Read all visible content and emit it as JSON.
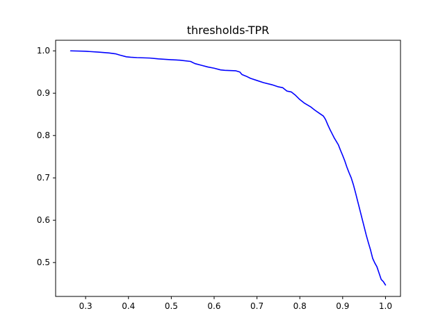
{
  "chart_data": {
    "type": "line",
    "title": "thresholds-TPR",
    "xlabel": "",
    "ylabel": "",
    "xlim": [
      0.23,
      1.035
    ],
    "ylim": [
      0.42,
      1.025
    ],
    "xticks": [
      0.3,
      0.4,
      0.5,
      0.6,
      0.7,
      0.8,
      0.9,
      1.0
    ],
    "xtick_labels": [
      "0.3",
      "0.4",
      "0.5",
      "0.6",
      "0.7",
      "0.8",
      "0.9",
      "1.0"
    ],
    "yticks": [
      0.5,
      0.6,
      0.7,
      0.8,
      0.9,
      1.0
    ],
    "ytick_labels": [
      "0.5",
      "0.6",
      "0.7",
      "0.8",
      "0.9",
      "1.0"
    ],
    "grid": false,
    "legend": "none",
    "series": [
      {
        "color": "#0000ff",
        "x": [
          0.265,
          0.3,
          0.33,
          0.355,
          0.37,
          0.38,
          0.395,
          0.405,
          0.42,
          0.45,
          0.47,
          0.5,
          0.52,
          0.545,
          0.555,
          0.57,
          0.585,
          0.6,
          0.615,
          0.625,
          0.65,
          0.66,
          0.665,
          0.675,
          0.685,
          0.7,
          0.715,
          0.735,
          0.75,
          0.76,
          0.77,
          0.78,
          0.79,
          0.8,
          0.81,
          0.825,
          0.835,
          0.845,
          0.855,
          0.86,
          0.865,
          0.87,
          0.875,
          0.88,
          0.89,
          0.895,
          0.9,
          0.905,
          0.91,
          0.915,
          0.92,
          0.925,
          0.93,
          0.935,
          0.94,
          0.945,
          0.95,
          0.955,
          0.96,
          0.965,
          0.97,
          0.975,
          0.98,
          0.985,
          0.99,
          0.995,
          1.0
        ],
        "y": [
          1.0,
          0.999,
          0.997,
          0.995,
          0.993,
          0.99,
          0.986,
          0.985,
          0.984,
          0.983,
          0.981,
          0.979,
          0.978,
          0.975,
          0.97,
          0.966,
          0.962,
          0.959,
          0.955,
          0.954,
          0.953,
          0.95,
          0.944,
          0.94,
          0.935,
          0.93,
          0.925,
          0.92,
          0.915,
          0.913,
          0.905,
          0.903,
          0.895,
          0.885,
          0.877,
          0.868,
          0.86,
          0.853,
          0.846,
          0.838,
          0.826,
          0.815,
          0.805,
          0.795,
          0.778,
          0.765,
          0.753,
          0.74,
          0.725,
          0.712,
          0.7,
          0.684,
          0.665,
          0.645,
          0.625,
          0.605,
          0.585,
          0.565,
          0.547,
          0.53,
          0.51,
          0.499,
          0.49,
          0.475,
          0.46,
          0.455,
          0.447
        ]
      }
    ]
  }
}
